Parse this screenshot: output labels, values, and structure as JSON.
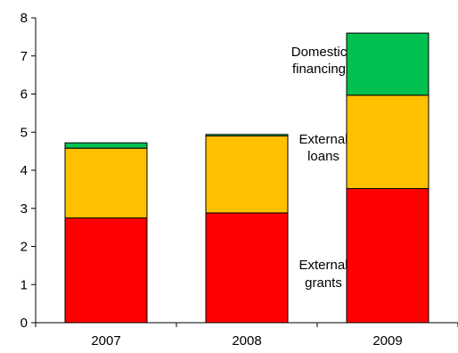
{
  "chart_data": {
    "type": "bar",
    "stacked": true,
    "title": "",
    "xlabel": "",
    "ylabel": "",
    "categories": [
      "2007",
      "2008",
      "2009"
    ],
    "ylim": [
      0,
      8
    ],
    "yticks": [
      "0",
      "1",
      "2",
      "3",
      "4",
      "5",
      "6",
      "7",
      "8"
    ],
    "grid": false,
    "legend": "none",
    "series": [
      {
        "name": "External grants",
        "values": [
          2.75,
          2.88,
          3.52
        ],
        "color": "#ff0000"
      },
      {
        "name": "External loans",
        "values": [
          1.83,
          2.02,
          2.45
        ],
        "color": "#ffc000"
      },
      {
        "name": "Domestic financing",
        "values": [
          0.14,
          0.04,
          1.63
        ],
        "color": "#00c050"
      }
    ],
    "annotations": {
      "domestic": [
        "Domestic",
        "financing"
      ],
      "loans": [
        "External",
        "loans"
      ],
      "grants": [
        "External",
        "grants"
      ]
    }
  }
}
